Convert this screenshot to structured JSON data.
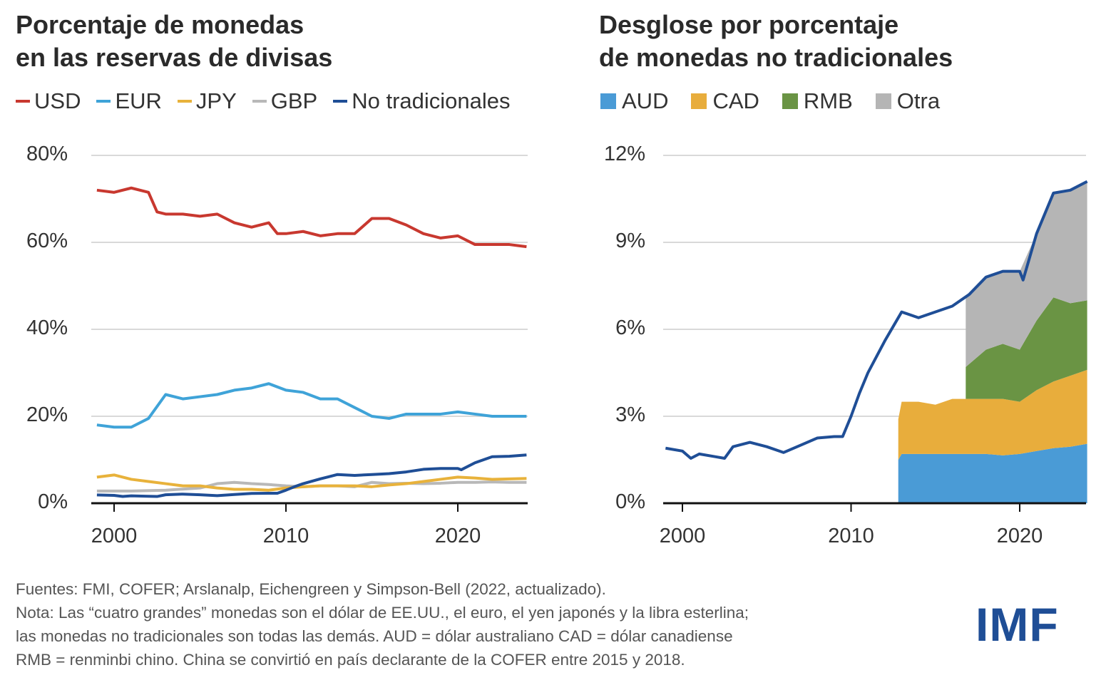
{
  "chart_data": [
    {
      "type": "line",
      "title": "Porcentaje de monedas en las reservas de divisas",
      "title_lines": [
        "Porcentaje de monedas",
        "en las reservas de divisas"
      ],
      "xlabel": "",
      "ylabel": "",
      "x_ticks": [
        "2000",
        "2010",
        "2020"
      ],
      "y_ticks": [
        "0%",
        "20%",
        "40%",
        "60%",
        "80%"
      ],
      "ylim": [
        0,
        80
      ],
      "xlim": [
        1999,
        2024
      ],
      "grid": true,
      "legend": "top",
      "series": [
        {
          "name": "USD",
          "color": "#c8382f",
          "x": [
            1999,
            2000,
            2001,
            2002,
            2002.5,
            2003,
            2004,
            2005,
            2006,
            2007,
            2008,
            2009,
            2009.5,
            2010,
            2011,
            2012,
            2013,
            2014,
            2015,
            2016,
            2017,
            2018,
            2019,
            2020,
            2021,
            2022,
            2023,
            2024
          ],
          "values": [
            72,
            71.5,
            72.5,
            71.5,
            67,
            66.5,
            66.5,
            66,
            66.5,
            64.5,
            63.5,
            64.5,
            62,
            62,
            62.5,
            61.5,
            62,
            62,
            65.5,
            65.5,
            64,
            62,
            61,
            61.5,
            59.5,
            59.5,
            59.5,
            59
          ]
        },
        {
          "name": "EUR",
          "color": "#3fa3d8",
          "x": [
            1999,
            2000,
            2001,
            2002,
            2003,
            2004,
            2005,
            2006,
            2007,
            2008,
            2009,
            2010,
            2011,
            2012,
            2013,
            2014,
            2015,
            2016,
            2017,
            2018,
            2019,
            2020,
            2021,
            2022,
            2023,
            2024
          ],
          "values": [
            18,
            17.5,
            17.5,
            19.5,
            25,
            24,
            24.5,
            25,
            26,
            26.5,
            27.5,
            26,
            25.5,
            24,
            24,
            22,
            20,
            19.5,
            20.5,
            20.5,
            20.5,
            21,
            20.5,
            20,
            20,
            20
          ]
        },
        {
          "name": "JPY",
          "color": "#e8b23b",
          "x": [
            1999,
            2000,
            2001,
            2002,
            2003,
            2004,
            2005,
            2006,
            2007,
            2008,
            2009,
            2010,
            2011,
            2012,
            2013,
            2014,
            2015,
            2016,
            2017,
            2018,
            2019,
            2020,
            2021,
            2022,
            2023,
            2024
          ],
          "values": [
            6,
            6.5,
            5.5,
            5,
            4.5,
            4,
            4,
            3.5,
            3.2,
            3.2,
            3,
            3.5,
            3.8,
            4,
            4,
            4,
            3.8,
            4.2,
            4.5,
            5,
            5.5,
            6,
            5.8,
            5.5,
            5.6,
            5.7
          ]
        },
        {
          "name": "GBP",
          "color": "#b8b8b8",
          "x": [
            1999,
            2001,
            2003,
            2005,
            2006,
            2007,
            2008,
            2009,
            2010,
            2011,
            2012,
            2013,
            2014,
            2015,
            2016,
            2017,
            2018,
            2019,
            2020,
            2021,
            2022,
            2023,
            2024
          ],
          "values": [
            2.8,
            2.8,
            3,
            3.5,
            4.5,
            4.8,
            4.5,
            4.3,
            4,
            3.8,
            4,
            4,
            3.8,
            4.8,
            4.5,
            4.6,
            4.5,
            4.6,
            4.8,
            4.8,
            4.9,
            4.8,
            4.8
          ]
        },
        {
          "name": "No tradicionales",
          "color": "#1f4e96",
          "x": [
            1999,
            2000,
            2000.5,
            2001,
            2002,
            2002.5,
            2003,
            2004,
            2005,
            2006,
            2007,
            2008,
            2009,
            2009.5,
            2010,
            2010.5,
            2011,
            2012,
            2012.5,
            2013,
            2014,
            2015,
            2016,
            2017,
            2018,
            2019,
            2020,
            2020.2,
            2021,
            2022,
            2023,
            2024
          ],
          "values": [
            1.9,
            1.8,
            1.55,
            1.7,
            1.6,
            1.55,
            1.95,
            2.1,
            1.95,
            1.75,
            2.0,
            2.25,
            2.3,
            2.3,
            3.0,
            3.8,
            4.5,
            5.6,
            6.1,
            6.6,
            6.4,
            6.6,
            6.8,
            7.2,
            7.8,
            8.0,
            8.0,
            7.7,
            9.3,
            10.7,
            10.8,
            11.1
          ]
        }
      ]
    },
    {
      "type": "area",
      "title": "Desglose por porcentaje de monedas no tradicionales",
      "title_lines": [
        "Desglose por porcentaje",
        "de monedas no tradicionales"
      ],
      "xlabel": "",
      "ylabel": "",
      "x_ticks": [
        "2000",
        "2010",
        "2020"
      ],
      "y_ticks": [
        "0%",
        "3%",
        "6%",
        "9%",
        "12%"
      ],
      "ylim": [
        0,
        12
      ],
      "xlim": [
        1999,
        2024
      ],
      "grid": true,
      "legend": "top",
      "stacked": true,
      "x": [
        2012.8,
        2013,
        2014,
        2015,
        2016,
        2016.8,
        2017,
        2018,
        2019,
        2020,
        2021,
        2022,
        2023,
        2024
      ],
      "series": [
        {
          "name": "AUD",
          "color": "#4a9bd6",
          "values": [
            1.5,
            1.7,
            1.7,
            1.7,
            1.7,
            1.7,
            1.7,
            1.7,
            1.65,
            1.7,
            1.8,
            1.9,
            1.95,
            2.05
          ]
        },
        {
          "name": "CAD",
          "color": "#e8ad3c",
          "values": [
            1.4,
            1.8,
            1.8,
            1.7,
            1.9,
            1.9,
            1.9,
            1.9,
            1.95,
            1.8,
            2.1,
            2.3,
            2.45,
            2.55
          ]
        },
        {
          "name": "RMB",
          "color": "#6a9444",
          "values": [
            null,
            null,
            null,
            null,
            null,
            1.1,
            1.2,
            1.7,
            1.9,
            1.8,
            2.4,
            2.9,
            2.5,
            2.4
          ]
        },
        {
          "name": "Otra",
          "color": "#b5b5b5",
          "values": [
            null,
            null,
            null,
            null,
            null,
            2.4,
            2.4,
            2.5,
            2.5,
            2.7,
            3.0,
            3.6,
            3.9,
            4.1
          ]
        }
      ],
      "total_line": {
        "color": "#1f4e96",
        "ref": "No tradicionales"
      }
    }
  ],
  "footnote": {
    "lines": [
      "Fuentes: FMI, COFER; Arslanalp, Eichengreen y Simpson-Bell (2022, actualizado).",
      "Nota: Las “cuatro grandes” monedas son el dólar de EE.UU., el euro, el yen japonés y la libra esterlina;",
      "las monedas no tradicionales son todas las demás. AUD = dólar australiano CAD = dólar canadiense",
      "RMB = renminbi chino. China se convirtió en país declarante de la COFER entre 2015 y 2018."
    ]
  },
  "logo": "IMF"
}
